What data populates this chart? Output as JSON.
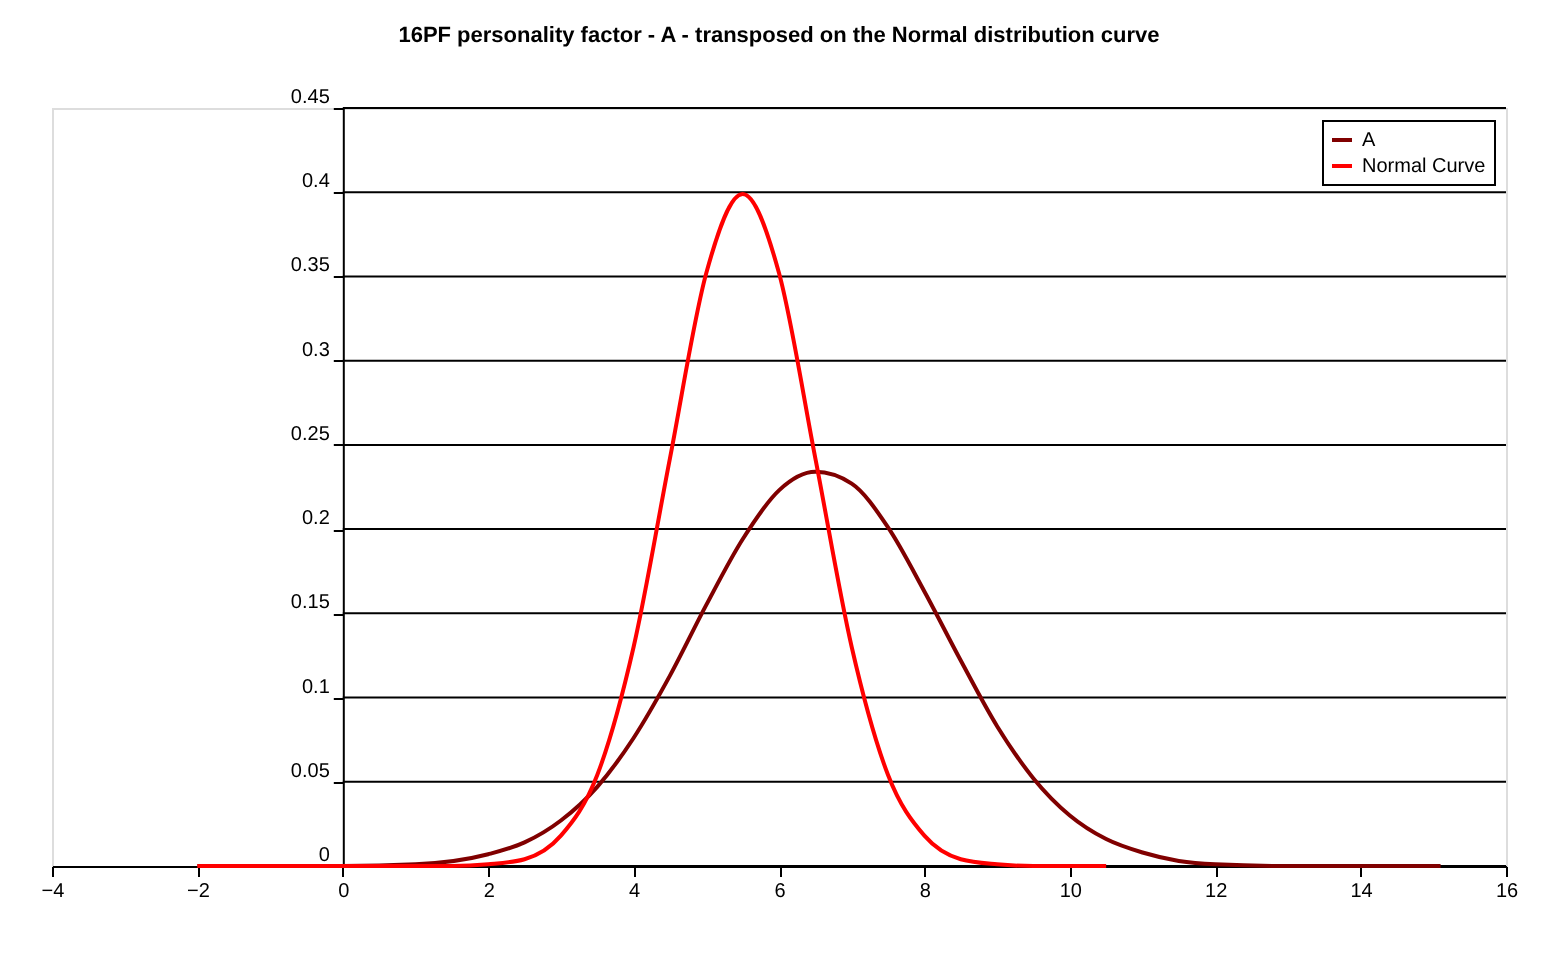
{
  "chart_data": {
    "type": "line",
    "title": "16PF personality factor - A - transposed  on the Normal distribution curve",
    "series": [
      {
        "name": "A",
        "color": "#800000",
        "x": [
          -2,
          0,
          1,
          2,
          2.5,
          3,
          3.5,
          4,
          4.5,
          5,
          5.5,
          6,
          6.5,
          7,
          7.5,
          8,
          8.5,
          9,
          9.5,
          10,
          10.5,
          11,
          11.5,
          12,
          13,
          14,
          15.1
        ],
        "values": [
          0,
          0,
          0.001,
          0.007,
          0.014,
          0.027,
          0.047,
          0.076,
          0.113,
          0.155,
          0.194,
          0.223,
          0.234,
          0.227,
          0.201,
          0.163,
          0.122,
          0.083,
          0.052,
          0.03,
          0.016,
          0.008,
          0.003,
          0.001,
          0,
          0,
          0
        ]
      },
      {
        "name": "Normal Curve",
        "color": "#ff0000",
        "x": [
          -2,
          0,
          1,
          1.5,
          2,
          2.5,
          3,
          3.5,
          4,
          4.5,
          5,
          5.5,
          6,
          6.5,
          7,
          7.5,
          8,
          8.5,
          9,
          9.5,
          10,
          10.5
        ],
        "values": [
          0,
          0,
          0,
          0,
          0.001,
          0.004,
          0.018,
          0.054,
          0.13,
          0.242,
          0.352,
          0.399,
          0.352,
          0.242,
          0.13,
          0.054,
          0.018,
          0.004,
          0.001,
          0,
          0,
          0
        ]
      }
    ],
    "xlim": [
      -4,
      16
    ],
    "xticks": [
      -4,
      -2,
      0,
      2,
      4,
      6,
      8,
      10,
      12,
      14,
      16
    ],
    "ylim": [
      0,
      0.45
    ],
    "yticks": [
      0,
      0.05,
      0.1,
      0.15,
      0.2,
      0.25,
      0.3,
      0.35,
      0.4,
      0.45
    ],
    "grid": "y",
    "legend": "top right",
    "marker": "none",
    "line_style": "solid"
  }
}
